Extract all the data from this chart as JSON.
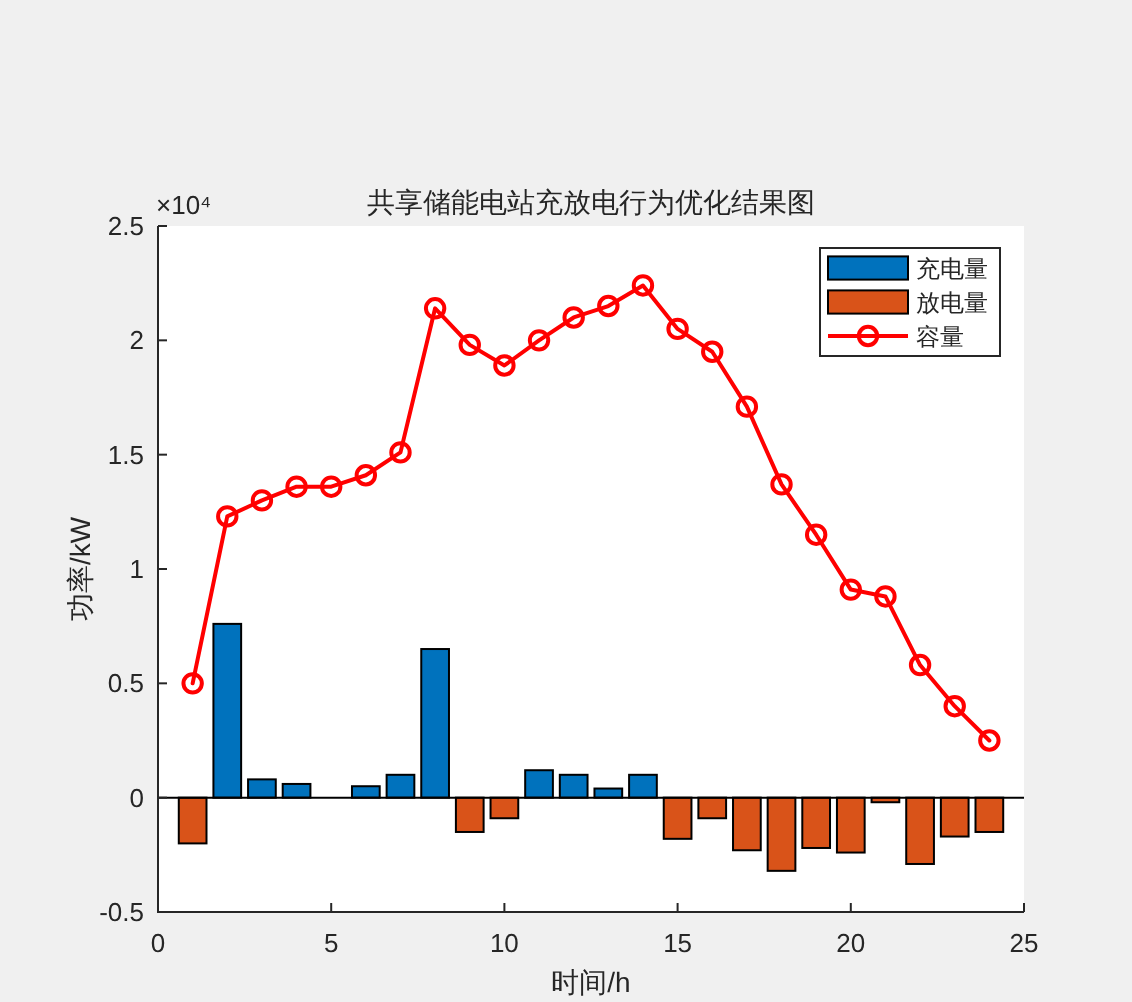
{
  "chart_data": {
    "type": "bar",
    "title": "共享储能电站充放电行为优化结果图",
    "xlabel": "时间/h",
    "ylabel": "功率/kW",
    "annotations": [
      "×10⁴"
    ],
    "x": [
      1,
      2,
      3,
      4,
      5,
      6,
      7,
      8,
      9,
      10,
      11,
      12,
      13,
      14,
      15,
      16,
      17,
      18,
      19,
      20,
      21,
      22,
      23,
      24
    ],
    "stacked": true,
    "series": [
      {
        "name": "充电量",
        "color": "#0072bd",
        "values": [
          null,
          0.76,
          0.08,
          0.06,
          0,
          0.05,
          0.1,
          0.65,
          null,
          null,
          0.12,
          0.1,
          0.04,
          0.1,
          null,
          null,
          null,
          null,
          null,
          null,
          null,
          null,
          null,
          null
        ]
      },
      {
        "name": "放电量",
        "color": "#d95319",
        "values": [
          -0.2,
          null,
          null,
          null,
          null,
          null,
          null,
          null,
          -0.15,
          -0.09,
          null,
          null,
          null,
          null,
          -0.18,
          -0.09,
          -0.23,
          -0.32,
          -0.22,
          -0.24,
          -0.02,
          -0.29,
          -0.17,
          -0.15
        ]
      },
      {
        "name": "容量",
        "type": "line",
        "color": "#ff0000",
        "marker": "circle",
        "values": [
          0.5,
          1.23,
          1.3,
          1.36,
          1.36,
          1.41,
          1.51,
          2.14,
          1.98,
          1.89,
          2.0,
          2.1,
          2.15,
          2.24,
          2.05,
          1.95,
          1.71,
          1.37,
          1.15,
          0.91,
          0.88,
          0.58,
          0.4,
          0.25
        ]
      }
    ],
    "xlim": [
      0,
      25
    ],
    "xticks": [
      0,
      5,
      10,
      15,
      20,
      25
    ],
    "ylim": [
      -0.5,
      2.5
    ],
    "yticks": [
      {
        "value": -0.5,
        "label": "-0.5"
      },
      0,
      0.5,
      1,
      1.5,
      2,
      2.5
    ],
    "legend": "top right"
  }
}
